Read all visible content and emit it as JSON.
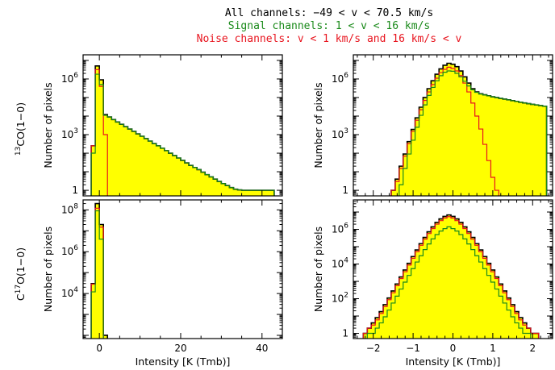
{
  "header": {
    "line1": "All channels: −49 < v < 70.5 km/s",
    "line2": "Signal channels: 1 < v < 16 km/s",
    "line3": "Noise channels: v < 1 km/s and 16 km/s < v"
  },
  "colors": {
    "all": "#000000",
    "signal": "#1a8a1a",
    "noise": "#e8141e",
    "fill": "#ffff00"
  },
  "row_labels": {
    "top": "CO(1−0)",
    "top_sup": "13",
    "bottom": "O(1−0)",
    "bottom_pre": "C",
    "bottom_sup": "17"
  },
  "chart_data": [
    {
      "type": "bar",
      "id": "13co-full",
      "scale": "log",
      "xlabel": "",
      "ylabel": "Number of pixels",
      "xlim": [
        -4,
        45
      ],
      "ylim": [
        0.5,
        20000000
      ],
      "xticks": [
        0,
        20,
        40
      ],
      "yticks": [
        1,
        1000,
        1000000
      ],
      "ytick_labels": [
        "1",
        "10^3",
        "10^6"
      ],
      "bin_start": -2,
      "bin_width": 1,
      "series": [
        {
          "key": "all",
          "fill": true,
          "values": [
            250,
            5000000,
            900000,
            12000,
            9000,
            6500,
            4800,
            3600,
            2700,
            2000,
            1500,
            1100,
            820,
            610,
            450,
            330,
            250,
            185,
            137,
            100,
            75,
            55,
            41,
            30,
            22,
            17,
            13,
            9.5,
            7,
            5.3,
            4,
            3,
            2.3,
            1.8,
            1.4,
            1.15,
            1.05,
            1,
            1,
            1,
            1,
            1,
            1,
            1,
            1
          ]
        },
        {
          "key": "signal",
          "fill": false,
          "values": [
            100,
            1800000,
            500000,
            11000,
            9000,
            6500,
            4800,
            3600,
            2700,
            2000,
            1500,
            1100,
            820,
            610,
            450,
            330,
            250,
            185,
            137,
            100,
            75,
            55,
            41,
            30,
            22,
            17,
            13,
            9.5,
            7,
            5.3,
            4,
            3,
            2.3,
            1.8,
            1.4,
            1.15,
            1.05,
            1,
            1,
            1,
            1,
            1,
            1,
            1,
            1
          ]
        },
        {
          "key": "noise",
          "fill": false,
          "values": [
            250,
            3200000,
            400000,
            1000
          ]
        }
      ]
    },
    {
      "type": "bar",
      "id": "13co-zoom",
      "scale": "log",
      "xlabel": "",
      "ylabel": "Number of pixels",
      "xlim": [
        -2.5,
        2.5
      ],
      "ylim": [
        0.5,
        20000000
      ],
      "xticks": [
        -2,
        -1,
        0,
        1,
        2
      ],
      "yticks": [
        1,
        1000,
        1000000
      ],
      "ytick_labels": [
        "1",
        "10^3",
        "10^6"
      ],
      "bin_start": -2.25,
      "bin_width": 0.1,
      "series": [
        {
          "key": "all",
          "fill": true,
          "values": [
            0,
            0,
            0,
            0,
            0,
            0,
            0,
            1,
            4,
            20,
            90,
            420,
            1900,
            8000,
            30000,
            100000,
            300000,
            800000,
            1800000,
            3500000,
            5500000,
            7000000,
            6200000,
            4600000,
            2700000,
            1300000,
            600000,
            300000,
            200000,
            160000,
            140000,
            125000,
            110000,
            100000,
            90000,
            82000,
            75000,
            68000,
            62000,
            56000,
            51000,
            47000,
            43000,
            40000,
            37000,
            34000
          ]
        },
        {
          "key": "signal",
          "fill": false,
          "values": [
            0,
            0,
            0,
            0,
            0,
            0,
            0,
            0,
            0,
            2,
            15,
            90,
            500,
            2500,
            11000,
            40000,
            130000,
            350000,
            800000,
            1500000,
            2300000,
            2700000,
            2600000,
            2000000,
            1300000,
            750000,
            420000,
            260000,
            190000,
            155000,
            138000,
            124000,
            110000,
            100000,
            90000,
            82000,
            75000,
            68000,
            62000,
            56000,
            51000,
            47000,
            43000,
            40000,
            37000,
            34000
          ]
        },
        {
          "key": "noise",
          "fill": false,
          "values": [
            0,
            0,
            0,
            0,
            0,
            0,
            0,
            1,
            3,
            15,
            70,
            330,
            1500,
            6000,
            22000,
            70000,
            200000,
            500000,
            1100000,
            2200000,
            3300000,
            4300000,
            3700000,
            2700000,
            1500000,
            600000,
            200000,
            50000,
            10000,
            2000,
            300,
            40,
            5,
            1,
            0,
            0,
            0,
            0,
            0,
            0,
            0,
            0,
            0,
            0,
            0,
            0
          ]
        }
      ]
    },
    {
      "type": "bar",
      "id": "c17o-full",
      "scale": "log",
      "xlabel": "Intensity [K (Tmb)]",
      "ylabel": "Number of pixels",
      "xlim": [
        -4,
        45
      ],
      "ylim": [
        70,
        300000000
      ],
      "xticks": [
        0,
        20,
        40
      ],
      "yticks": [
        10000,
        1000000,
        100000000
      ],
      "ytick_labels": [
        "10^4",
        "10^6",
        "10^8"
      ],
      "bin_start": -2,
      "bin_width": 1,
      "series": [
        {
          "key": "all",
          "fill": true,
          "values": [
            30000,
            200000000,
            20000000,
            100
          ]
        },
        {
          "key": "signal",
          "fill": false,
          "values": [
            12000,
            90000000,
            4000000
          ]
        },
        {
          "key": "noise",
          "fill": false,
          "values": [
            28000,
            120000000,
            15000000
          ]
        }
      ]
    },
    {
      "type": "bar",
      "id": "c17o-zoom",
      "scale": "log",
      "xlabel": "Intensity [K (Tmb)]",
      "ylabel": "Number of pixels",
      "xlim": [
        -2.5,
        2.5
      ],
      "ylim": [
        0.5,
        50000000
      ],
      "xticks": [
        -2,
        -1,
        0,
        1,
        2
      ],
      "yticks": [
        1,
        100,
        10000,
        1000000
      ],
      "ytick_labels": [
        "1",
        "10^2",
        "10^4",
        "10^6"
      ],
      "bin_start": -2.25,
      "bin_width": 0.1,
      "series": [
        {
          "key": "all",
          "fill": true,
          "values": [
            1,
            2,
            4,
            8,
            18,
            45,
            110,
            280,
            700,
            1800,
            4500,
            11000,
            27000,
            65000,
            150000,
            340000,
            720000,
            1400000,
            2500000,
            4000000,
            5600000,
            6800000,
            5600000,
            4000000,
            2500000,
            1400000,
            720000,
            340000,
            150000,
            65000,
            27000,
            11000,
            4500,
            1800,
            700,
            280,
            110,
            45,
            18,
            8,
            4,
            2,
            1,
            1
          ]
        },
        {
          "key": "signal",
          "fill": false,
          "values": [
            0,
            1,
            1,
            2,
            4,
            9,
            22,
            56,
            140,
            360,
            900,
            2200,
            5400,
            13000,
            30000,
            68000,
            144000,
            280000,
            500000,
            800000,
            1100000,
            1400000,
            1100000,
            800000,
            500000,
            280000,
            144000,
            68000,
            30000,
            13000,
            5400,
            2200,
            900,
            360,
            140,
            56,
            22,
            9,
            4,
            2,
            1,
            1,
            0,
            0
          ]
        },
        {
          "key": "noise",
          "fill": false,
          "values": [
            1,
            2,
            3,
            6,
            14,
            35,
            88,
            220,
            560,
            1450,
            3600,
            8800,
            21600,
            52000,
            120000,
            272000,
            576000,
            1120000,
            2000000,
            3200000,
            4500000,
            5400000,
            4500000,
            3200000,
            2000000,
            1120000,
            576000,
            272000,
            120000,
            52000,
            21600,
            8800,
            3600,
            1450,
            560,
            220,
            88,
            35,
            14,
            6,
            3,
            2,
            1,
            1
          ]
        }
      ]
    }
  ]
}
